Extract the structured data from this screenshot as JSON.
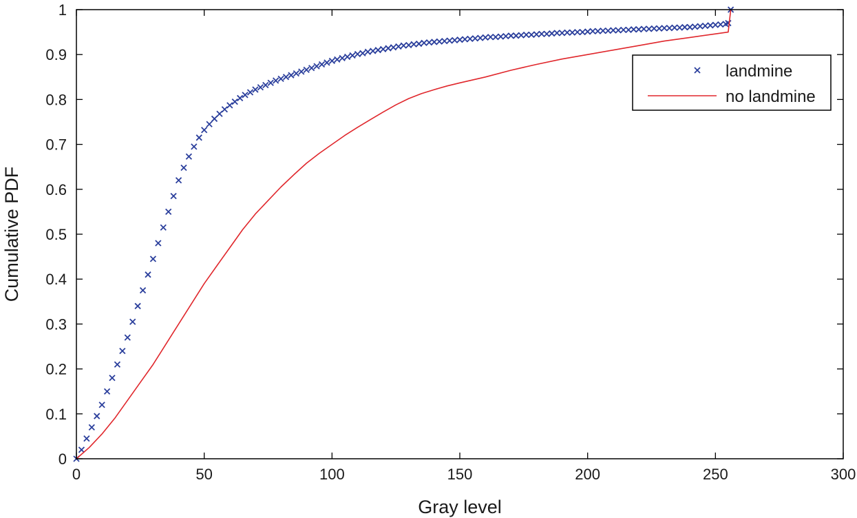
{
  "chart_data": {
    "type": "line",
    "xlabel": "Gray level",
    "ylabel": "Cumulative PDF",
    "xlim": [
      0,
      300
    ],
    "ylim": [
      0,
      1
    ],
    "xticks": [
      0,
      50,
      100,
      150,
      200,
      250,
      300
    ],
    "yticks": [
      0,
      0.1,
      0.2,
      0.3,
      0.4,
      0.5,
      0.6,
      0.7,
      0.8,
      0.9,
      1
    ],
    "ytick_labels": [
      "0",
      "0.1",
      "0.2",
      "0.3",
      "0.4",
      "0.5",
      "0.6",
      "0.7",
      "0.8",
      "0.9",
      "1"
    ],
    "grid": false,
    "legend_position": "top-right",
    "series": [
      {
        "name": "landmine",
        "marker": "x",
        "color": "#2b3f9c",
        "x": [
          0,
          2,
          4,
          6,
          8,
          10,
          12,
          14,
          16,
          18,
          20,
          22,
          24,
          26,
          28,
          30,
          32,
          34,
          36,
          38,
          40,
          42,
          44,
          46,
          48,
          50,
          52,
          54,
          56,
          58,
          60,
          62,
          64,
          66,
          68,
          70,
          72,
          74,
          76,
          78,
          80,
          82,
          84,
          86,
          88,
          90,
          92,
          94,
          96,
          98,
          100,
          102,
          104,
          106,
          108,
          110,
          112,
          114,
          116,
          118,
          120,
          122,
          124,
          126,
          128,
          130,
          132,
          134,
          136,
          138,
          140,
          142,
          144,
          146,
          148,
          150,
          152,
          154,
          156,
          158,
          160,
          162,
          164,
          166,
          168,
          170,
          172,
          174,
          176,
          178,
          180,
          182,
          184,
          186,
          188,
          190,
          192,
          194,
          196,
          198,
          200,
          202,
          204,
          206,
          208,
          210,
          212,
          214,
          216,
          218,
          220,
          222,
          224,
          226,
          228,
          230,
          232,
          234,
          236,
          238,
          240,
          242,
          244,
          246,
          248,
          250,
          252,
          254,
          255,
          256
        ],
        "y": [
          0.0,
          0.02,
          0.045,
          0.07,
          0.095,
          0.12,
          0.15,
          0.18,
          0.21,
          0.24,
          0.27,
          0.305,
          0.34,
          0.375,
          0.41,
          0.445,
          0.48,
          0.515,
          0.55,
          0.585,
          0.62,
          0.648,
          0.673,
          0.695,
          0.715,
          0.732,
          0.745,
          0.757,
          0.768,
          0.778,
          0.787,
          0.795,
          0.803,
          0.81,
          0.816,
          0.822,
          0.827,
          0.832,
          0.837,
          0.842,
          0.846,
          0.85,
          0.854,
          0.858,
          0.862,
          0.866,
          0.87,
          0.874,
          0.878,
          0.882,
          0.886,
          0.889,
          0.892,
          0.895,
          0.898,
          0.901,
          0.903,
          0.906,
          0.908,
          0.91,
          0.912,
          0.914,
          0.916,
          0.918,
          0.92,
          0.921,
          0.923,
          0.924,
          0.926,
          0.927,
          0.928,
          0.929,
          0.93,
          0.931,
          0.932,
          0.933,
          0.934,
          0.935,
          0.936,
          0.937,
          0.938,
          0.939,
          0.939,
          0.94,
          0.941,
          0.942,
          0.942,
          0.943,
          0.944,
          0.944,
          0.945,
          0.946,
          0.946,
          0.947,
          0.948,
          0.948,
          0.949,
          0.949,
          0.95,
          0.95,
          0.951,
          0.952,
          0.952,
          0.953,
          0.953,
          0.954,
          0.954,
          0.955,
          0.955,
          0.956,
          0.956,
          0.957,
          0.957,
          0.958,
          0.958,
          0.959,
          0.959,
          0.96,
          0.96,
          0.961,
          0.961,
          0.962,
          0.963,
          0.964,
          0.965,
          0.966,
          0.967,
          0.968,
          0.97,
          1.0
        ]
      },
      {
        "name": "no landmine",
        "marker": "line",
        "color": "#e0262b",
        "x": [
          0,
          5,
          10,
          15,
          20,
          25,
          30,
          35,
          40,
          45,
          50,
          55,
          60,
          65,
          70,
          75,
          80,
          85,
          90,
          95,
          100,
          105,
          110,
          115,
          120,
          125,
          130,
          135,
          140,
          145,
          150,
          160,
          170,
          180,
          190,
          200,
          210,
          220,
          230,
          240,
          250,
          255,
          256
        ],
        "y": [
          0.0,
          0.025,
          0.055,
          0.09,
          0.13,
          0.17,
          0.21,
          0.255,
          0.3,
          0.345,
          0.39,
          0.43,
          0.47,
          0.51,
          0.545,
          0.575,
          0.605,
          0.632,
          0.658,
          0.68,
          0.7,
          0.72,
          0.738,
          0.755,
          0.772,
          0.788,
          0.802,
          0.813,
          0.822,
          0.83,
          0.837,
          0.85,
          0.865,
          0.878,
          0.89,
          0.9,
          0.91,
          0.92,
          0.93,
          0.938,
          0.946,
          0.95,
          1.0
        ]
      }
    ]
  }
}
